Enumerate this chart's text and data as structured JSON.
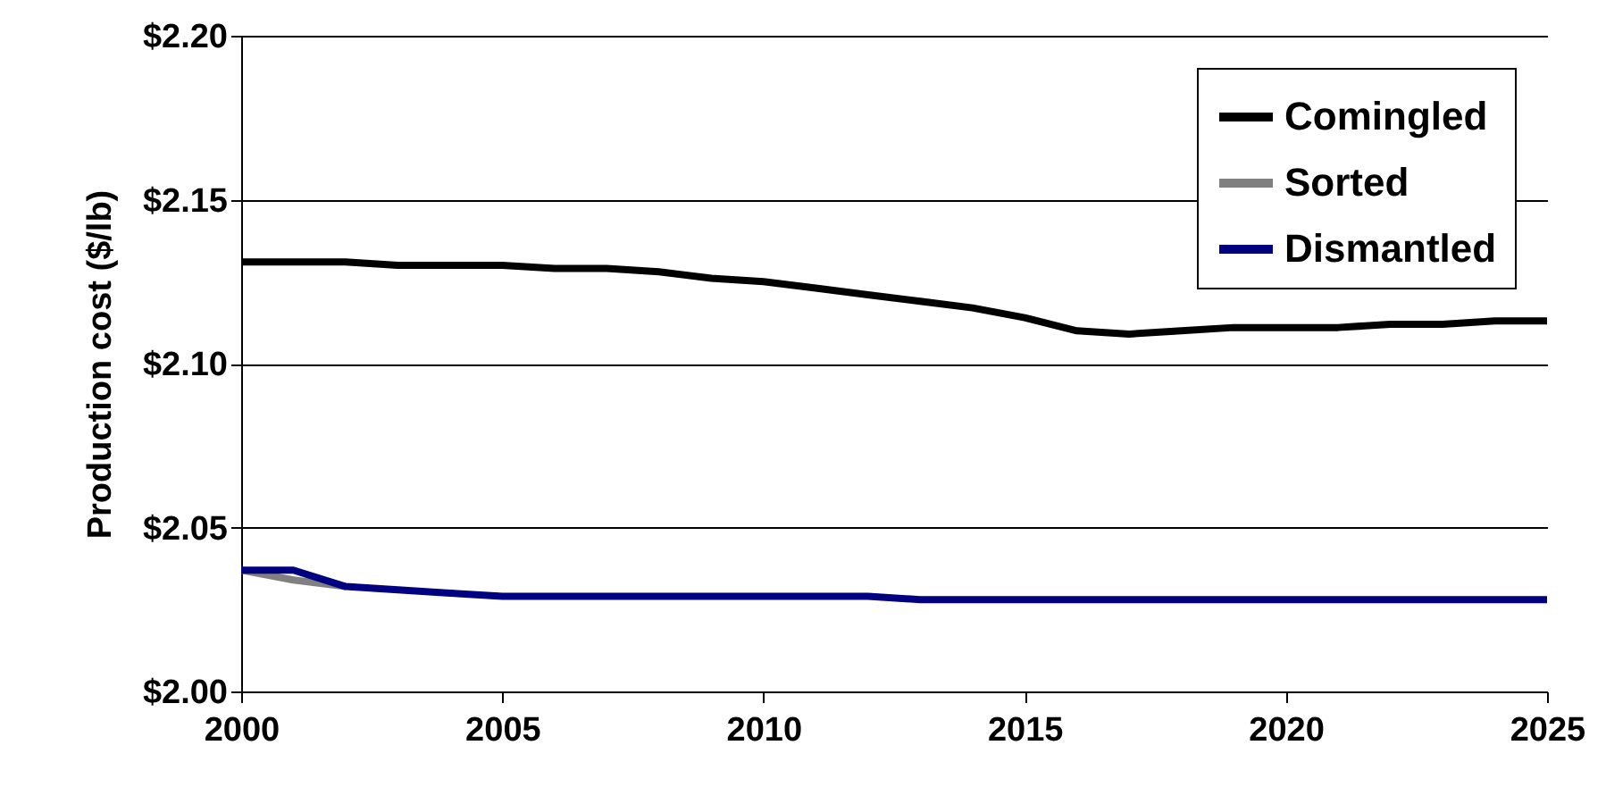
{
  "chart_data": {
    "type": "line",
    "ylabel": "Production cost ($/lb)",
    "x": [
      2000,
      2001,
      2002,
      2003,
      2004,
      2005,
      2006,
      2007,
      2008,
      2009,
      2010,
      2011,
      2012,
      2013,
      2014,
      2015,
      2016,
      2017,
      2018,
      2019,
      2020,
      2021,
      2022,
      2023,
      2024,
      2025
    ],
    "series": [
      {
        "name": "Comingled",
        "color": "#000000",
        "values": [
          2.131,
          2.131,
          2.131,
          2.13,
          2.13,
          2.13,
          2.129,
          2.129,
          2.128,
          2.126,
          2.125,
          2.123,
          2.121,
          2.119,
          2.117,
          2.114,
          2.11,
          2.109,
          2.11,
          2.111,
          2.111,
          2.111,
          2.112,
          2.112,
          2.113,
          2.113
        ]
      },
      {
        "name": "Sorted",
        "color": "#808080",
        "values": [
          2.037,
          2.034,
          2.032,
          null,
          null,
          null,
          null,
          null,
          null,
          null,
          null,
          null,
          null,
          null,
          null,
          null,
          null,
          null,
          null,
          null,
          null,
          null,
          null,
          null,
          null,
          null
        ]
      },
      {
        "name": "Dismantled",
        "color": "#000080",
        "values": [
          2.037,
          2.037,
          2.032,
          2.031,
          2.03,
          2.029,
          2.029,
          2.029,
          2.029,
          2.029,
          2.029,
          2.029,
          2.029,
          2.028,
          2.028,
          2.028,
          2.028,
          2.028,
          2.028,
          2.028,
          2.028,
          2.028,
          2.028,
          2.028,
          2.028,
          2.028
        ]
      }
    ],
    "xlim": [
      2000,
      2025
    ],
    "xticks": [
      2000,
      2005,
      2010,
      2015,
      2020,
      2025
    ],
    "ylim": [
      2.0,
      2.2
    ],
    "yticks": [
      {
        "value": 2.0,
        "label": "$2.00"
      },
      {
        "value": 2.05,
        "label": "$2.05"
      },
      {
        "value": 2.1,
        "label": "$2.10"
      },
      {
        "value": 2.15,
        "label": "$2.15"
      },
      {
        "value": 2.2,
        "label": "$2.20"
      }
    ],
    "grid": "y",
    "legend": "top right",
    "line_style": "solid",
    "marker": "none"
  }
}
